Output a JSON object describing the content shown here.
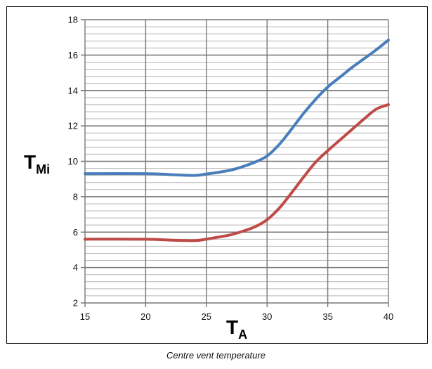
{
  "chart_data": {
    "type": "line",
    "xlabel": "T",
    "xlabel_sub": "A",
    "ylabel": "T",
    "ylabel_sub": "Mi",
    "xlim": [
      15,
      40
    ],
    "ylim": [
      2,
      18
    ],
    "x_ticks": [
      15,
      20,
      25,
      30,
      35,
      40
    ],
    "y_ticks": [
      2,
      4,
      6,
      8,
      10,
      12,
      14,
      16,
      18
    ],
    "y_minor_step": 0.4,
    "grid": true,
    "series": [
      {
        "color": "#4a7ebb",
        "x": [
          15,
          20,
          22,
          24,
          25,
          26,
          27,
          28,
          29,
          30,
          31,
          32,
          33,
          34,
          35,
          36,
          37,
          38,
          39,
          40
        ],
        "y": [
          9.3,
          9.3,
          9.25,
          9.2,
          9.28,
          9.38,
          9.5,
          9.7,
          9.95,
          10.3,
          10.95,
          11.8,
          12.7,
          13.5,
          14.2,
          14.75,
          15.3,
          15.8,
          16.3,
          16.85
        ]
      },
      {
        "color": "#be4b48",
        "x": [
          15,
          20,
          22,
          24,
          25,
          26,
          27,
          28,
          29,
          30,
          31,
          32,
          33,
          34,
          35,
          36,
          37,
          38,
          39,
          40
        ],
        "y": [
          5.6,
          5.6,
          5.55,
          5.52,
          5.6,
          5.72,
          5.85,
          6.05,
          6.3,
          6.7,
          7.35,
          8.2,
          9.1,
          9.95,
          10.6,
          11.2,
          11.8,
          12.4,
          12.95,
          13.2
        ]
      }
    ]
  },
  "caption": "Centre vent temperature"
}
